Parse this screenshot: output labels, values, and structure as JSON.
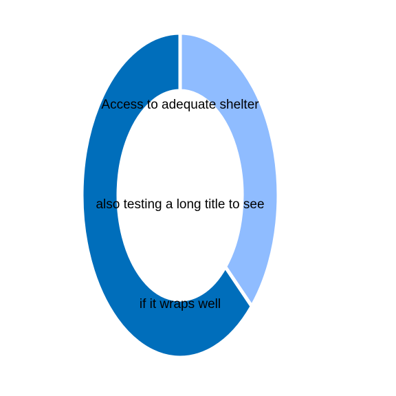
{
  "chart_data": {
    "type": "pie",
    "variant": "donut",
    "title_lines": [
      "Access to adequate shelter",
      "also testing a long title to see",
      "if it wraps well"
    ],
    "slices": [
      {
        "value": 37,
        "color": "#8fbcff"
      },
      {
        "value": 63,
        "color": "#006ebb"
      }
    ],
    "separator_color": "#ffffff"
  }
}
